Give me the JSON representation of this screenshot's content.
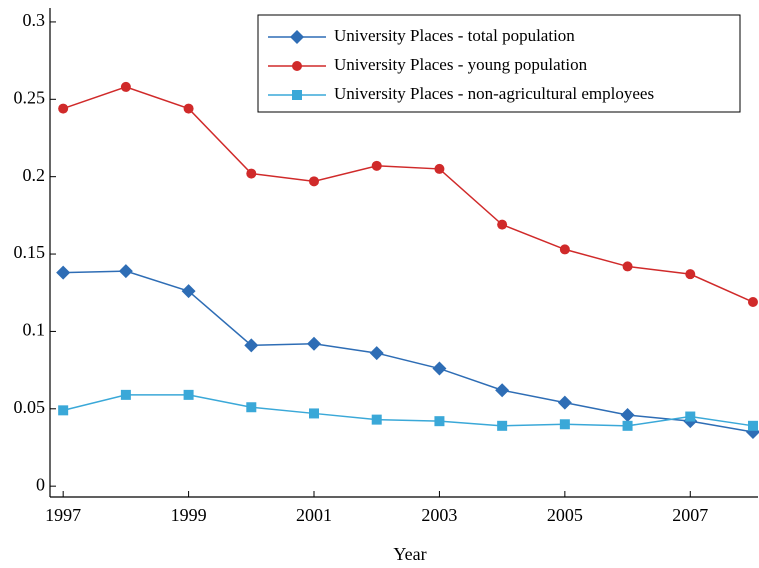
{
  "chart_data": {
    "type": "line",
    "x_label": "Year",
    "x": [
      1997,
      1998,
      1999,
      2000,
      2001,
      2002,
      2003,
      2004,
      2005,
      2006,
      2007,
      2008
    ],
    "series": [
      {
        "name": "University Places - total population",
        "color": "#2e6db5",
        "marker": "diamond",
        "values": [
          0.138,
          0.139,
          0.126,
          0.091,
          0.092,
          0.086,
          0.076,
          0.062,
          0.054,
          0.046,
          0.042,
          0.035
        ]
      },
      {
        "name": "University Places - young population",
        "color": "#d02a2a",
        "marker": "circle",
        "values": [
          0.244,
          0.258,
          0.244,
          0.202,
          0.197,
          0.207,
          0.205,
          0.169,
          0.153,
          0.142,
          0.137,
          0.119
        ]
      },
      {
        "name": "University Places - non-agricultural employees",
        "color": "#3aa8d8",
        "marker": "square",
        "values": [
          0.049,
          0.059,
          0.059,
          0.051,
          0.047,
          0.043,
          0.042,
          0.039,
          0.04,
          0.039,
          0.045,
          0.039
        ]
      }
    ],
    "xlim": [
      1996.79,
      2008.08
    ],
    "xticks": [
      1997,
      1999,
      2001,
      2003,
      2005,
      2007
    ],
    "ylim": [
      -0.007,
      0.309
    ],
    "yticks": [
      0,
      0.05,
      0.1,
      0.15,
      0.2,
      0.25,
      0.3
    ],
    "legend": "upper right",
    "grid": false
  }
}
